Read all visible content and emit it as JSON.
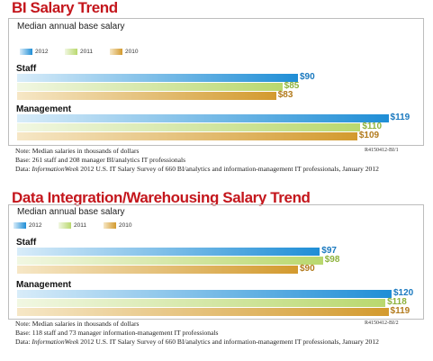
{
  "chart_data": [
    {
      "type": "bar",
      "orientation": "horizontal",
      "title": "BI Salary Trend",
      "subtitle": "Median annual base salary",
      "categories": [
        "Staff",
        "Management"
      ],
      "series": [
        {
          "name": "2012",
          "values": [
            90,
            119
          ],
          "labels": [
            "$90",
            "$119"
          ]
        },
        {
          "name": "2011",
          "values": [
            85,
            110
          ],
          "labels": [
            "$85",
            "$110"
          ]
        },
        {
          "name": "2010",
          "values": [
            83,
            109
          ],
          "labels": [
            "$83",
            "$109"
          ]
        }
      ],
      "legend_position": "top-left",
      "notes": [
        "Note: Median salaries in thousands of dollars",
        "Base: 261 staff and 208 manager BI/analytics IT professionals",
        "Data: InformationWeek 2012 U.S. IT Salary Survey of 660 BI/analytics and information-management IT professionals, January 2012"
      ],
      "code": "R4150412-BI/1"
    },
    {
      "type": "bar",
      "orientation": "horizontal",
      "title": "Data Integration/Warehousing Salary Trend",
      "subtitle": "Median annual base salary",
      "categories": [
        "Staff",
        "Management"
      ],
      "series": [
        {
          "name": "2012",
          "values": [
            97,
            120
          ],
          "labels": [
            "$97",
            "$120"
          ]
        },
        {
          "name": "2011",
          "values": [
            98,
            118
          ],
          "labels": [
            "$98",
            "$118"
          ]
        },
        {
          "name": "2010",
          "values": [
            90,
            119
          ],
          "labels": [
            "$90",
            "$119"
          ]
        }
      ],
      "legend_position": "top-left",
      "notes": [
        "Note: Median salaries in thousands of dollars",
        "Base: 118 staff and 73 manager information-management IT professionals",
        "Data: InformationWeek 2012 U.S. IT Salary Survey of 660 BI/analytics and information-management IT professionals, January 2012"
      ],
      "code": "R4150412-BI/2"
    }
  ],
  "colors": {
    "title": "#c4161c",
    "series_2012": "#1f8ed6",
    "series_2011": "#b9d86e",
    "series_2010": "#d39a2e"
  }
}
